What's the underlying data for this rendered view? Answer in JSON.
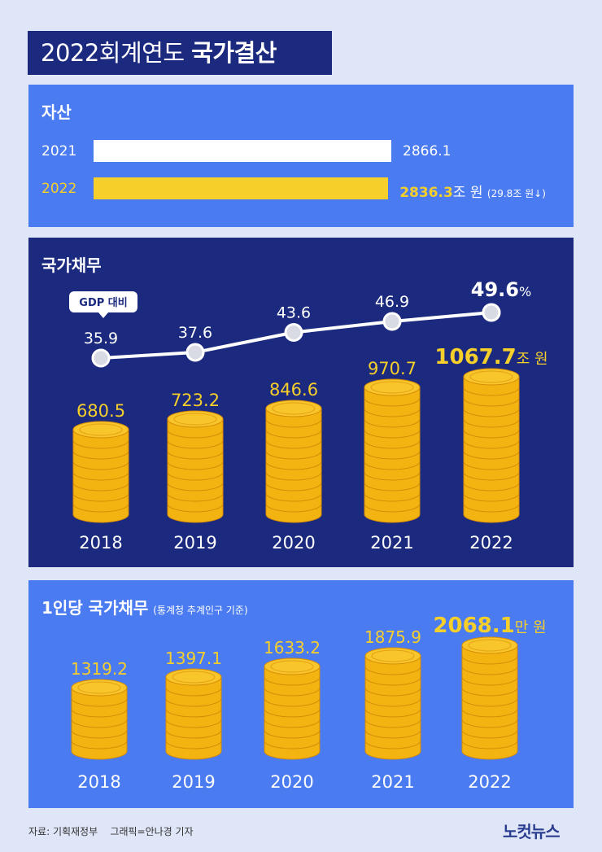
{
  "title": {
    "light": "2022회계연도",
    "bold": "국가결산"
  },
  "assets": {
    "heading": "자산",
    "rows": [
      {
        "year": "2021",
        "value": 2866.1,
        "label": "2866.1",
        "unit": "",
        "change": "",
        "color": "#ffffff"
      },
      {
        "year": "2022",
        "value": 2836.3,
        "label": "2836.3",
        "unit": "조 원",
        "change": "(29.8조 원↓)",
        "color": "#f6cf2b"
      }
    ]
  },
  "debt": {
    "heading": "국가채무",
    "gdp_badge": "GDP 대비",
    "final_unit": "조 원",
    "percent_unit": "%"
  },
  "percap": {
    "heading": "1인당 국가채무",
    "note": "(통계청 추계인구 기준)",
    "final_unit": "만 원"
  },
  "chart_data": [
    {
      "type": "bar",
      "title": "자산",
      "categories": [
        "2021",
        "2022"
      ],
      "values": [
        2866.1,
        2836.3
      ],
      "unit": "조 원"
    },
    {
      "type": "bar",
      "title": "국가채무",
      "categories": [
        "2018",
        "2019",
        "2020",
        "2021",
        "2022"
      ],
      "values": [
        680.5,
        723.2,
        846.6,
        970.7,
        1067.7
      ],
      "value_labels": [
        "680.5",
        "723.2",
        "846.6",
        "970.7",
        "1067.7"
      ],
      "unit": "조 원"
    },
    {
      "type": "line",
      "title": "GDP 대비",
      "categories": [
        "2018",
        "2019",
        "2020",
        "2021",
        "2022"
      ],
      "values": [
        35.9,
        37.6,
        43.6,
        46.9,
        49.6
      ],
      "value_labels": [
        "35.9",
        "37.6",
        "43.6",
        "46.9",
        "49.6"
      ],
      "unit": "%"
    },
    {
      "type": "bar",
      "title": "1인당 국가채무",
      "categories": [
        "2018",
        "2019",
        "2020",
        "2021",
        "2022"
      ],
      "values": [
        1319.2,
        1397.1,
        1633.2,
        1875.9,
        2068.1
      ],
      "value_labels": [
        "1319.2",
        "1397.1",
        "1633.2",
        "1875.9",
        "2068.1"
      ],
      "unit": "만 원"
    }
  ],
  "footer": {
    "source": "자료: 기획재정부",
    "credit": "그래픽=안나경 기자",
    "logo": "노컷뉴스"
  },
  "colors": {
    "navy": "#1b2a7e",
    "blue": "#4a7bf1",
    "gold": "#f6cf2b",
    "coin": "#f3b411",
    "coin_dark": "#d48b06"
  }
}
